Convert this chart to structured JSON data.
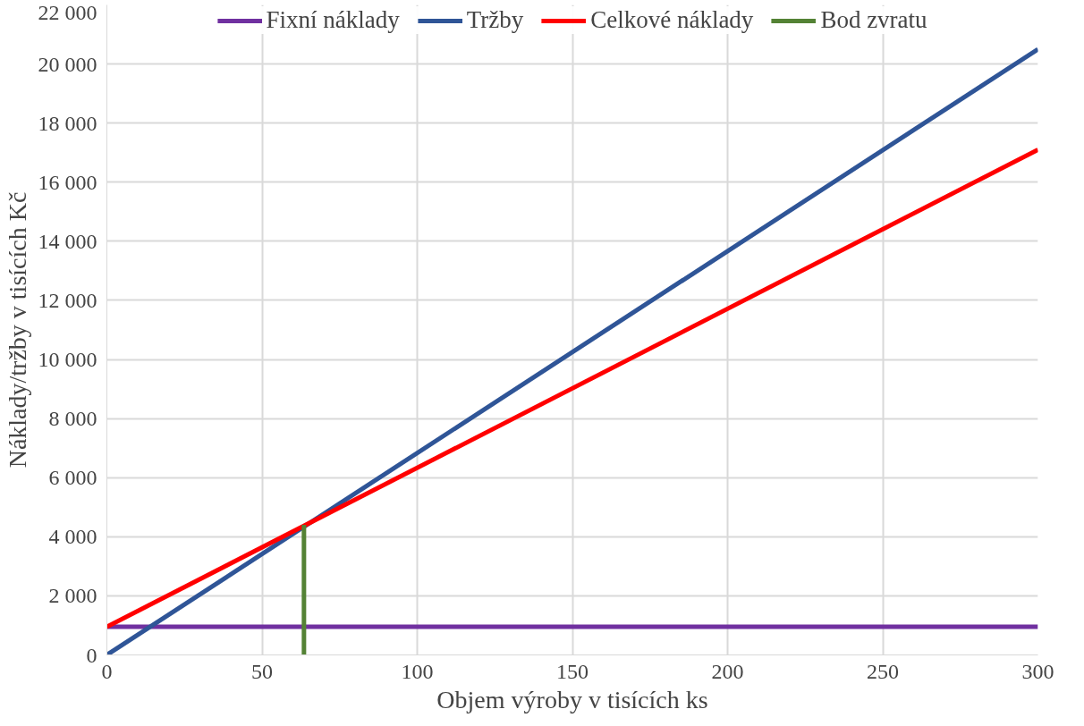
{
  "chart_data": {
    "type": "line",
    "xlabel": "Objem výroby v tisících ks",
    "ylabel": "Náklady/tržby v tisících Kč",
    "xlim": [
      0,
      300
    ],
    "xticks": [
      0,
      50,
      100,
      150,
      200,
      250,
      300
    ],
    "ylim": [
      0,
      22000
    ],
    "yticks": [
      0,
      {
        "value": 2000,
        "label": "2 000"
      },
      {
        "value": 4000,
        "label": "4 000"
      },
      {
        "value": 6000,
        "label": "6 000"
      },
      {
        "value": 8000,
        "label": "8 000"
      },
      {
        "value": 10000,
        "label": "10 000"
      },
      {
        "value": 12000,
        "label": "12 000"
      },
      {
        "value": 14000,
        "label": "14 000"
      },
      {
        "value": 16000,
        "label": "16 000"
      },
      {
        "value": 18000,
        "label": "18 000"
      },
      {
        "value": 20000,
        "label": "20 000"
      },
      {
        "value": 22000,
        "label": "22 000"
      }
    ],
    "grid": true,
    "legend": "top",
    "marker": "none",
    "line_style": "solid",
    "series": [
      {
        "name": "Fixní náklady",
        "color": "#7030a0",
        "x": [
          0,
          300
        ],
        "values": [
          950,
          950
        ]
      },
      {
        "name": "Tržby",
        "color": "#2f5597",
        "x": [
          0,
          300
        ],
        "values": [
          0,
          20500
        ]
      },
      {
        "name": "Celkové náklady",
        "color": "#ff0000",
        "x": [
          0,
          300
        ],
        "values": [
          950,
          17100
        ]
      },
      {
        "name": "Bod zvratu",
        "color": "#548235",
        "x": [
          63.5,
          63.5
        ],
        "values": [
          0,
          4400
        ]
      }
    ]
  }
}
